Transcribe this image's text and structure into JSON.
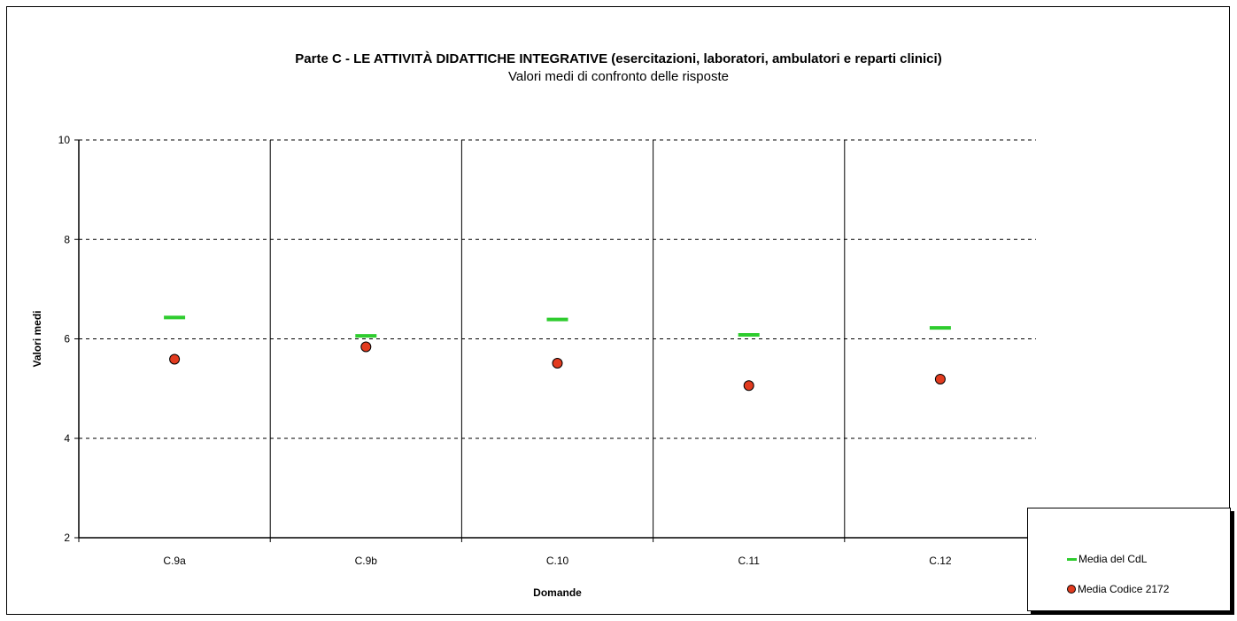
{
  "chart_data": {
    "type": "scatter",
    "title": "Parte C - LE ATTIVITÀ DIDATTICHE INTEGRATIVE (esercitazioni, laboratori, ambulatori e reparti clinici)",
    "subtitle": "Valori medi di confronto delle risposte",
    "xlabel": "Domande",
    "ylabel": "Valori medi",
    "categories": [
      "C.9a",
      "C.9b",
      "C.10",
      "C.11",
      "C.12"
    ],
    "ylim": [
      2,
      10
    ],
    "yticks": [
      "2",
      "4",
      "6",
      "8",
      "10"
    ],
    "grid": "horizontal dashed",
    "legend_position": "bottom-right",
    "series": [
      {
        "name": "Media del CdL",
        "marker": "dash",
        "color": "#2ecc2e",
        "values": [
          6.43,
          6.06,
          6.39,
          6.08,
          6.22
        ]
      },
      {
        "name": "Media Codice 2172",
        "marker": "circle",
        "color": "#e23b1f",
        "values": [
          5.59,
          5.84,
          5.51,
          5.06,
          5.19
        ]
      }
    ]
  }
}
